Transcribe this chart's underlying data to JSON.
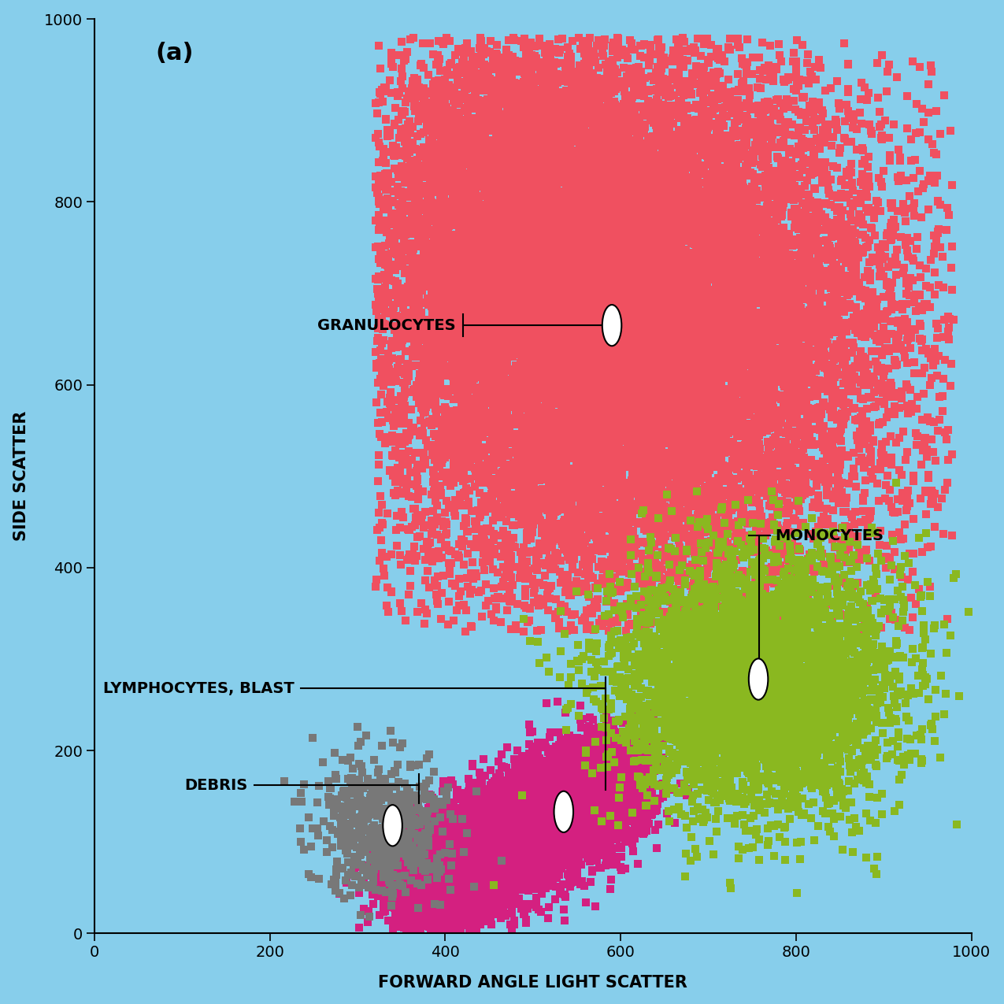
{
  "background_color": "#87CEEB",
  "xlim": [
    0,
    1000
  ],
  "ylim": [
    0,
    1000
  ],
  "xlabel": "FORWARD ANGLE LIGHT SCATTER",
  "ylabel": "SIDE SCATTER",
  "title": "(a)",
  "xticks": [
    0,
    200,
    400,
    600,
    800,
    1000
  ],
  "yticks": [
    0,
    200,
    400,
    600,
    800,
    1000
  ],
  "gran_color": "#f05060",
  "lymp_color": "#d42080",
  "mono_color": "#8ab820",
  "deb_color": "#787878",
  "gran_marker_x": 590,
  "gran_marker_y": 665,
  "lymp_marker_x": 535,
  "lymp_marker_y": 133,
  "mono_marker_x": 757,
  "mono_marker_y": 278,
  "deb_marker_x": 340,
  "deb_marker_y": 118
}
